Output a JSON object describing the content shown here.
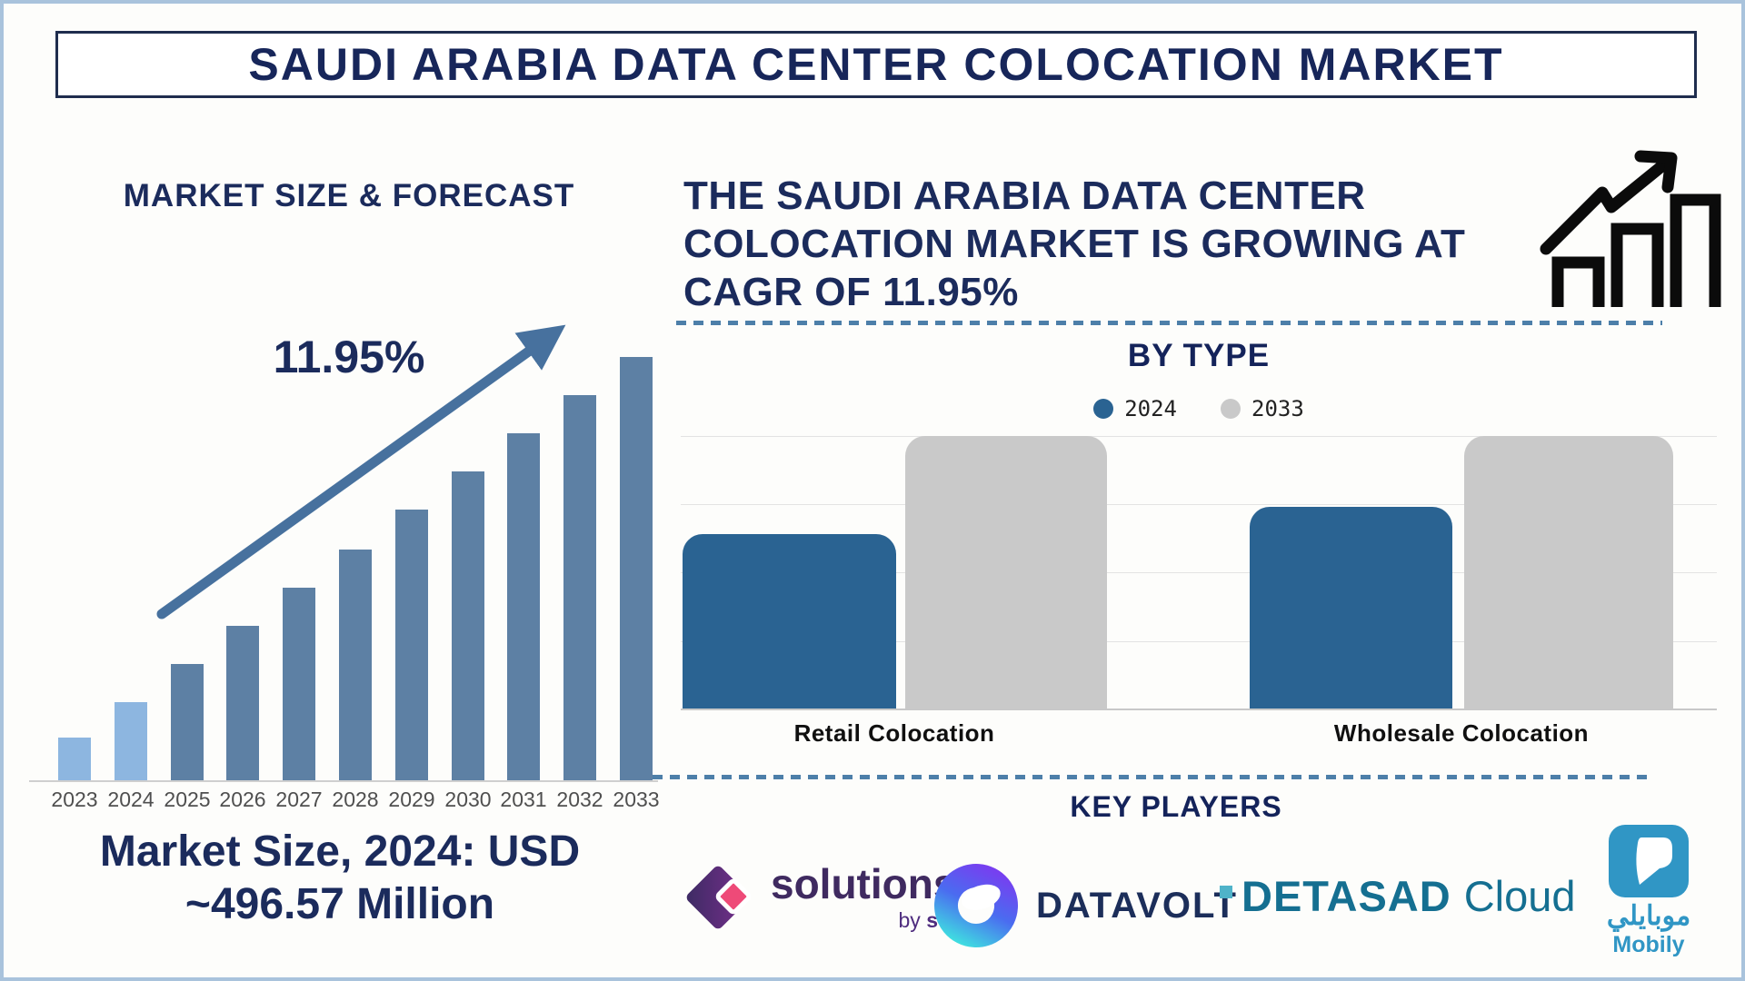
{
  "header": {
    "title": "SAUDI ARABIA DATA CENTER COLOCATION MARKET"
  },
  "forecast": {
    "heading": "MARKET SIZE & FORECAST",
    "cagr": "11.95%",
    "years": [
      "2023",
      "2024",
      "2025",
      "2026",
      "2027",
      "2028",
      "2029",
      "2030",
      "2031",
      "2032",
      "2033"
    ],
    "caption_line1": "Market Size, 2024: USD",
    "caption_line2": "~496.57 Million"
  },
  "growth_note": {
    "lines": [
      "THE SAUDI ARABIA DATA CENTER",
      "COLOCATION MARKET IS GROWING AT",
      "CAGR OF 11.95%"
    ]
  },
  "by_type": {
    "heading": "BY TYPE",
    "legend": [
      {
        "label": "2024"
      },
      {
        "label": "2033"
      }
    ],
    "categories": [
      "Retail Colocation",
      "Wholesale Colocation"
    ]
  },
  "key_players": {
    "heading": "KEY PLAYERS",
    "players": [
      {
        "name": "solutions by stc",
        "wordmark": "solutions",
        "byline_by": "by ",
        "byline_stc": "stc"
      },
      {
        "name": "DATAVOLT",
        "wordmark": "DATAVOLT"
      },
      {
        "name": "DETASAD Cloud",
        "wordmark_bold": "DETASAD",
        "wordmark_light": "Cloud"
      },
      {
        "name": "Mobily",
        "arabic": "موبايلي",
        "latin": "Mobily"
      }
    ]
  },
  "icons": [
    "growth-chart-icon",
    "trend-arrow-icon",
    "stc-diamond-icon",
    "datavolt-swirl-icon",
    "detasad-square-icon",
    "mobily-speechmark-icon",
    "legend-dot"
  ],
  "colors": {
    "navy_text": "#1b2b5c",
    "steel_blue_bar": "#5d80a4",
    "light_blue_bar": "#8db6e0",
    "arrow_blue": "#47719e",
    "bytype_blue_2024": "#2a6392",
    "bytype_gray_2033": "#c9c9c9",
    "dashed_divider": "#4d7fa9",
    "page_border": "#a9c3dc",
    "title_box_border": "#1f2d4e",
    "year_label_gray": "#4f4f4f",
    "solutions_purple": "#3f2a60",
    "stc_pink": "#ee4a78",
    "datavolt_navy": "#1c2e5a",
    "detasad_teal": "#156f91",
    "mobily_blue": "#3096c5"
  },
  "chart_data": [
    {
      "type": "bar",
      "title": "MARKET SIZE & FORECAST",
      "categories": [
        "2023",
        "2024",
        "2025",
        "2026",
        "2027",
        "2028",
        "2029",
        "2030",
        "2031",
        "2032",
        "2033"
      ],
      "values": [
        10,
        18.5,
        27.5,
        36.5,
        45.5,
        54.5,
        64,
        73,
        82,
        91,
        100
      ],
      "unit": "relative bar height (y-axis unlabeled)",
      "ylim": [
        0,
        100
      ],
      "annotation": "11.95% CAGR shown with rising arrow",
      "highlight": "2023 and 2024 bars are light blue; 2025-2033 bars are steel blue",
      "xlabel": "",
      "ylabel": "",
      "grid": false,
      "footnote": "Market Size, 2024: USD ~496.57 Million"
    },
    {
      "type": "bar",
      "title": "BY TYPE",
      "categories": [
        "Retail Colocation",
        "Wholesale Colocation"
      ],
      "series": [
        {
          "name": "2024",
          "values": [
            64,
            74
          ]
        },
        {
          "name": "2033",
          "values": [
            100,
            100
          ]
        }
      ],
      "unit": "relative bar height (y-axis unlabeled)",
      "ylim": [
        0,
        100
      ],
      "legend_position": "top",
      "grid": "horizontal"
    }
  ]
}
